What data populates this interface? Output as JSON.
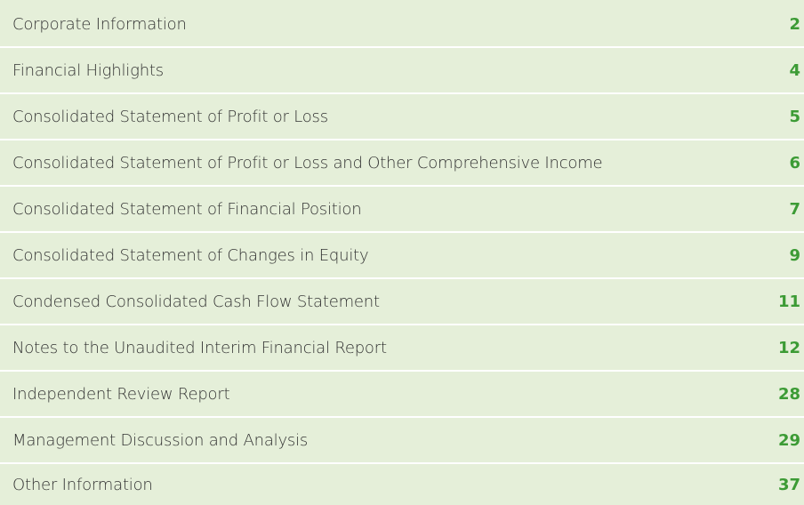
{
  "contents": [
    {
      "title": "Corporate Information",
      "page": "2"
    },
    {
      "title": "Financial Highlights",
      "page": "4"
    },
    {
      "title": "Consolidated Statement of Profit or Loss",
      "page": "5"
    },
    {
      "title": "Consolidated Statement of Profit or Loss and Other Comprehensive Income",
      "page": "6"
    },
    {
      "title": "Consolidated Statement of Financial Position",
      "page": "7"
    },
    {
      "title": "Consolidated Statement of Changes in Equity",
      "page": "9"
    },
    {
      "title": "Condensed Consolidated Cash Flow Statement",
      "page": "11"
    },
    {
      "title": "Notes to the Unaudited Interim Financial Report",
      "page": "12"
    },
    {
      "title": "Independent Review Report",
      "page": "28"
    },
    {
      "title": "Management Discussion and Analysis",
      "page": "29"
    },
    {
      "title": "Other Information",
      "page": "37"
    }
  ]
}
